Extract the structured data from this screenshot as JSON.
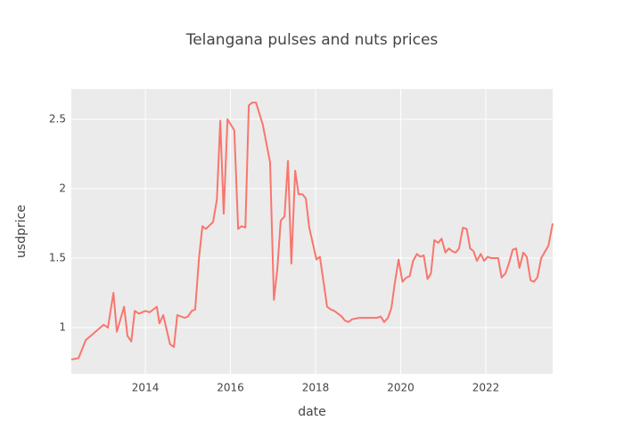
{
  "chart_data": {
    "type": "line",
    "title": "Telangana pulses and nuts prices",
    "x_label": "date",
    "y_label": "usdprice",
    "grid": true,
    "xlim": [
      2012.26,
      2023.57
    ],
    "xticks": [
      2014,
      2016,
      2018,
      2020,
      2022
    ],
    "ylim": [
      0.667,
      2.718
    ],
    "yticks": [
      1,
      1.5,
      2,
      2.5
    ],
    "series": [
      {
        "name": "usdprice",
        "color": "#f8766d",
        "x": [
          2012.26,
          2012.43,
          2012.6,
          2013.02,
          2013.12,
          2013.25,
          2013.33,
          2013.5,
          2013.58,
          2013.67,
          2013.75,
          2013.85,
          2014.0,
          2014.1,
          2014.27,
          2014.33,
          2014.42,
          2014.58,
          2014.67,
          2014.75,
          2014.92,
          2015.0,
          2015.09,
          2015.17,
          2015.26,
          2015.34,
          2015.42,
          2015.59,
          2015.68,
          2015.76,
          2015.84,
          2015.93,
          2016.09,
          2016.18,
          2016.26,
          2016.35,
          2016.43,
          2016.51,
          2016.6,
          2016.76,
          2016.93,
          2017.02,
          2017.1,
          2017.18,
          2017.27,
          2017.35,
          2017.43,
          2017.52,
          2017.6,
          2017.69,
          2017.77,
          2017.85,
          2018.02,
          2018.1,
          2018.19,
          2018.27,
          2018.36,
          2018.44,
          2018.61,
          2018.69,
          2018.77,
          2018.86,
          2019.03,
          2019.2,
          2019.44,
          2019.53,
          2019.61,
          2019.7,
          2019.78,
          2019.86,
          2019.95,
          2020.04,
          2020.13,
          2020.21,
          2020.29,
          2020.38,
          2020.46,
          2020.54,
          2020.63,
          2020.71,
          2020.79,
          2020.88,
          2020.96,
          2021.05,
          2021.13,
          2021.21,
          2021.29,
          2021.37,
          2021.46,
          2021.55,
          2021.63,
          2021.71,
          2021.79,
          2021.88,
          2021.96,
          2022.04,
          2022.12,
          2022.29,
          2022.37,
          2022.46,
          2022.54,
          2022.63,
          2022.71,
          2022.79,
          2022.88,
          2022.96,
          2023.05,
          2023.13,
          2023.21,
          2023.3,
          2023.47,
          2023.57
        ],
        "values": [
          0.77,
          0.78,
          0.91,
          1.02,
          1.0,
          1.25,
          0.97,
          1.15,
          0.94,
          0.9,
          1.12,
          1.1,
          1.12,
          1.11,
          1.15,
          1.03,
          1.09,
          0.88,
          0.86,
          1.09,
          1.07,
          1.08,
          1.12,
          1.13,
          1.5,
          1.73,
          1.71,
          1.76,
          1.92,
          2.49,
          1.82,
          2.5,
          2.42,
          1.71,
          1.73,
          1.72,
          2.6,
          2.62,
          2.62,
          2.46,
          2.19,
          1.2,
          1.42,
          1.77,
          1.8,
          2.2,
          1.46,
          2.13,
          1.96,
          1.96,
          1.93,
          1.72,
          1.49,
          1.51,
          1.32,
          1.15,
          1.13,
          1.12,
          1.08,
          1.05,
          1.04,
          1.06,
          1.07,
          1.07,
          1.07,
          1.08,
          1.04,
          1.07,
          1.14,
          1.32,
          1.49,
          1.33,
          1.36,
          1.37,
          1.48,
          1.53,
          1.51,
          1.52,
          1.35,
          1.39,
          1.63,
          1.61,
          1.64,
          1.54,
          1.57,
          1.55,
          1.54,
          1.57,
          1.72,
          1.71,
          1.57,
          1.55,
          1.48,
          1.53,
          1.48,
          1.51,
          1.5,
          1.5,
          1.36,
          1.39,
          1.46,
          1.56,
          1.57,
          1.43,
          1.54,
          1.51,
          1.34,
          1.33,
          1.36,
          1.5,
          1.59,
          1.75
        ]
      }
    ]
  }
}
